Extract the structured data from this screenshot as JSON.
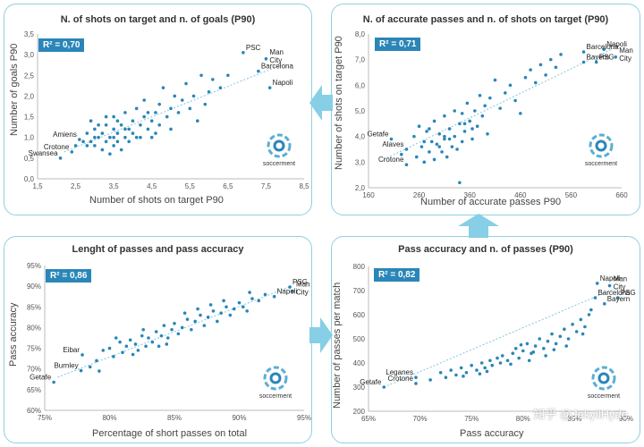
{
  "watermark": "知乎 @JekyllHyde",
  "logo_label": "soccerment",
  "colors": {
    "point": "#2a86b8",
    "trend": "#7fc6de",
    "border": "#8fcfe3",
    "r2_bg": "#2a86b8",
    "arrow": "#86cfe6"
  },
  "chart_data": [
    {
      "type": "scatter",
      "title": "N. of shots on target and n. of goals (P90)",
      "xlabel": "Number of shots on target P90",
      "ylabel": "Number of goals P90",
      "r2": "R² = 0,70",
      "xlim": [
        1.5,
        8.5
      ],
      "ylim": [
        0,
        3.5
      ],
      "xticks": [
        1.5,
        2.5,
        3.5,
        4.5,
        5.5,
        6.5,
        7.5,
        8.5
      ],
      "xtick_labels": [
        "1,5",
        "2,5",
        "3,5",
        "4,5",
        "5,5",
        "6,5",
        "7,5",
        "8,5"
      ],
      "yticks": [
        0,
        0.5,
        1,
        1.5,
        2,
        2.5,
        3,
        3.5
      ],
      "ytick_labels": [
        "0,0",
        "0,5",
        "1,0",
        "1,5",
        "2,0",
        "2,5",
        "3,0",
        "3,5"
      ],
      "trend": [
        [
          2.2,
          0.65
        ],
        [
          7.9,
          2.75
        ]
      ],
      "annotations": [
        {
          "label": "PSC",
          "x": 6.9,
          "y": 3.05
        },
        {
          "label": "Man City",
          "x": 7.5,
          "y": 2.9
        },
        {
          "label": "Barcelona",
          "x": 7.3,
          "y": 2.6
        },
        {
          "label": "Napoli",
          "x": 7.6,
          "y": 2.2
        },
        {
          "label": "Amiens",
          "x": 2.6,
          "y": 0.95
        },
        {
          "label": "Crotone",
          "x": 2.4,
          "y": 0.65
        },
        {
          "label": "Swansea",
          "x": 2.1,
          "y": 0.5
        }
      ],
      "points": [
        [
          2.1,
          0.5
        ],
        [
          2.4,
          0.65
        ],
        [
          2.6,
          0.95
        ],
        [
          2.5,
          0.8
        ],
        [
          2.7,
          0.9
        ],
        [
          2.8,
          1.1
        ],
        [
          2.9,
          1.4
        ],
        [
          3.0,
          0.8
        ],
        [
          3.0,
          1.2
        ],
        [
          3.1,
          1.0
        ],
        [
          3.2,
          0.7
        ],
        [
          3.2,
          1.1
        ],
        [
          3.3,
          0.9
        ],
        [
          3.3,
          1.3
        ],
        [
          3.4,
          1.0
        ],
        [
          3.5,
          0.8
        ],
        [
          3.5,
          1.2
        ],
        [
          3.5,
          1.5
        ],
        [
          3.6,
          0.9
        ],
        [
          3.6,
          1.1
        ],
        [
          3.7,
          1.3
        ],
        [
          3.7,
          0.7
        ],
        [
          3.8,
          1.0
        ],
        [
          3.8,
          1.6
        ],
        [
          3.9,
          1.2
        ],
        [
          3.9,
          0.9
        ],
        [
          4.0,
          1.4
        ],
        [
          4.0,
          1.1
        ],
        [
          4.1,
          1.0
        ],
        [
          4.1,
          1.7
        ],
        [
          4.2,
          1.3
        ],
        [
          4.3,
          1.5
        ],
        [
          4.3,
          1.9
        ],
        [
          4.4,
          1.2
        ],
        [
          4.5,
          1.4
        ],
        [
          4.5,
          1.0
        ],
        [
          4.6,
          1.6
        ],
        [
          4.7,
          1.8
        ],
        [
          4.7,
          1.3
        ],
        [
          4.8,
          2.2
        ],
        [
          4.9,
          1.5
        ],
        [
          5.0,
          1.7
        ],
        [
          5.0,
          1.2
        ],
        [
          5.1,
          2.0
        ],
        [
          5.2,
          1.6
        ],
        [
          5.3,
          1.9
        ],
        [
          5.4,
          2.3
        ],
        [
          5.5,
          1.7
        ],
        [
          5.6,
          2.0
        ],
        [
          5.7,
          1.4
        ],
        [
          5.8,
          2.5
        ],
        [
          5.9,
          1.8
        ],
        [
          6.0,
          2.1
        ],
        [
          6.1,
          2.4
        ],
        [
          6.3,
          2.2
        ],
        [
          6.5,
          2.5
        ],
        [
          6.9,
          3.05
        ],
        [
          7.5,
          2.9
        ],
        [
          7.3,
          2.6
        ],
        [
          7.6,
          2.2
        ],
        [
          3.0,
          1.0
        ],
        [
          3.4,
          0.6
        ],
        [
          2.9,
          0.9
        ],
        [
          3.6,
          1.4
        ],
        [
          4.2,
          1.0
        ],
        [
          3.1,
          1.3
        ],
        [
          3.8,
          1.2
        ],
        [
          4.4,
          1.6
        ],
        [
          4.6,
          1.1
        ],
        [
          3.3,
          1.5
        ],
        [
          2.8,
          0.8
        ],
        [
          3.5,
          1.0
        ]
      ]
    },
    {
      "type": "scatter",
      "title": "N. of accurate passes and n. of shots on target (P90)",
      "xlabel": "Number of accurate passes P90",
      "ylabel": "Number of shots on target P90",
      "r2": "R² = 0,71",
      "xlim": [
        160,
        660
      ],
      "ylim": [
        2,
        8
      ],
      "xticks": [
        160,
        260,
        360,
        460,
        560,
        660
      ],
      "xtick_labels": [
        "160",
        "260",
        "360",
        "460",
        "560",
        "660"
      ],
      "yticks": [
        2,
        3,
        4,
        5,
        6,
        7,
        8
      ],
      "ytick_labels": [
        "2,0",
        "3,0",
        "4,0",
        "5,0",
        "6,0",
        "7,0",
        "8,0"
      ],
      "trend": [
        [
          190,
          3.1
        ],
        [
          650,
          7.5
        ]
      ],
      "annotations": [
        {
          "label": "Barcelona",
          "x": 585,
          "y": 7.3
        },
        {
          "label": "Napoli",
          "x": 625,
          "y": 7.4
        },
        {
          "label": "Bayern",
          "x": 585,
          "y": 6.9
        },
        {
          "label": "PSG",
          "x": 610,
          "y": 6.9
        },
        {
          "label": "Man City",
          "x": 648,
          "y": 7.1
        },
        {
          "label": "Getafe",
          "x": 205,
          "y": 3.9
        },
        {
          "label": "Alaves",
          "x": 235,
          "y": 3.5
        },
        {
          "label": "Crotone",
          "x": 235,
          "y": 2.9
        }
      ],
      "points": [
        [
          205,
          3.9
        ],
        [
          235,
          3.5
        ],
        [
          235,
          2.9
        ],
        [
          225,
          3.3
        ],
        [
          250,
          4.0
        ],
        [
          255,
          3.2
        ],
        [
          260,
          4.4
        ],
        [
          265,
          3.6
        ],
        [
          270,
          3.0
        ],
        [
          275,
          4.2
        ],
        [
          280,
          3.4
        ],
        [
          285,
          3.8
        ],
        [
          290,
          4.6
        ],
        [
          290,
          3.1
        ],
        [
          295,
          3.7
        ],
        [
          300,
          4.1
        ],
        [
          305,
          3.4
        ],
        [
          310,
          4.8
        ],
        [
          310,
          3.9
        ],
        [
          315,
          3.2
        ],
        [
          320,
          4.3
        ],
        [
          325,
          3.6
        ],
        [
          330,
          5.0
        ],
        [
          330,
          4.0
        ],
        [
          335,
          3.5
        ],
        [
          340,
          2.2
        ],
        [
          340,
          4.5
        ],
        [
          345,
          3.8
        ],
        [
          350,
          4.2
        ],
        [
          355,
          5.3
        ],
        [
          360,
          4.6
        ],
        [
          365,
          3.9
        ],
        [
          370,
          5.0
        ],
        [
          375,
          4.4
        ],
        [
          380,
          5.6
        ],
        [
          385,
          4.8
        ],
        [
          390,
          5.2
        ],
        [
          395,
          4.1
        ],
        [
          400,
          5.5
        ],
        [
          410,
          6.2
        ],
        [
          420,
          5.1
        ],
        [
          430,
          5.7
        ],
        [
          440,
          6.0
        ],
        [
          450,
          5.4
        ],
        [
          460,
          4.9
        ],
        [
          470,
          6.3
        ],
        [
          480,
          6.6
        ],
        [
          490,
          6.1
        ],
        [
          500,
          6.8
        ],
        [
          510,
          6.4
        ],
        [
          520,
          7.0
        ],
        [
          530,
          6.7
        ],
        [
          540,
          7.2
        ],
        [
          585,
          7.3
        ],
        [
          625,
          7.4
        ],
        [
          585,
          6.9
        ],
        [
          610,
          6.9
        ],
        [
          648,
          7.1
        ],
        [
          270,
          3.8
        ],
        [
          300,
          3.6
        ],
        [
          320,
          3.9
        ],
        [
          350,
          4.5
        ],
        [
          280,
          4.3
        ],
        [
          310,
          4.0
        ],
        [
          345,
          4.9
        ],
        [
          365,
          4.3
        ]
      ]
    },
    {
      "type": "scatter",
      "title": "Lenght of passes and pass accuracy",
      "xlabel": "Percentage of short passes on total",
      "ylabel": "Pass accuracy",
      "r2": "R² = 0,86",
      "xlim": [
        75,
        95
      ],
      "ylim": [
        60,
        95
      ],
      "xticks": [
        75,
        80,
        85,
        90,
        95
      ],
      "xtick_labels": [
        "75%",
        "80%",
        "85%",
        "90%",
        "95%"
      ],
      "yticks": [
        60,
        65,
        70,
        75,
        80,
        85,
        90,
        95
      ],
      "ytick_labels": [
        "60%",
        "65%",
        "70%",
        "75%",
        "80%",
        "85%",
        "90%",
        "95%"
      ],
      "trend": [
        [
          76,
          68
        ],
        [
          94,
          90
        ]
      ],
      "annotations": [
        {
          "label": "PSG",
          "x": 93.9,
          "y": 89.8
        },
        {
          "label": "Man City",
          "x": 94.1,
          "y": 88.8
        },
        {
          "label": "Napoli",
          "x": 92.7,
          "y": 87.5
        },
        {
          "label": "Eibar",
          "x": 77.9,
          "y": 73.4
        },
        {
          "label": "Burnley",
          "x": 77.8,
          "y": 69.6
        },
        {
          "label": "Getafe",
          "x": 75.7,
          "y": 66.8
        }
      ],
      "points": [
        [
          75.7,
          66.8
        ],
        [
          77.8,
          69.6
        ],
        [
          77.9,
          73.4
        ],
        [
          78.5,
          70.5
        ],
        [
          79.0,
          72.0
        ],
        [
          79.5,
          74.5
        ],
        [
          80.0,
          75.0
        ],
        [
          80.3,
          73.0
        ],
        [
          80.8,
          76.5
        ],
        [
          81.0,
          74.0
        ],
        [
          81.3,
          75.5
        ],
        [
          81.6,
          77.0
        ],
        [
          82.0,
          76.0
        ],
        [
          82.2,
          74.5
        ],
        [
          82.5,
          78.0
        ],
        [
          82.8,
          75.5
        ],
        [
          83.0,
          77.5
        ],
        [
          83.3,
          76.5
        ],
        [
          83.6,
          79.0
        ],
        [
          84.0,
          78.0
        ],
        [
          84.2,
          80.5
        ],
        [
          84.5,
          77.5
        ],
        [
          84.8,
          79.5
        ],
        [
          85.0,
          81.0
        ],
        [
          85.3,
          78.5
        ],
        [
          85.6,
          80.0
        ],
        [
          86.0,
          82.0
        ],
        [
          86.3,
          79.5
        ],
        [
          86.6,
          81.5
        ],
        [
          87.0,
          83.0
        ],
        [
          87.3,
          80.5
        ],
        [
          87.6,
          82.5
        ],
        [
          88.0,
          84.0
        ],
        [
          88.3,
          81.5
        ],
        [
          88.6,
          83.5
        ],
        [
          89.0,
          85.0
        ],
        [
          89.3,
          83.0
        ],
        [
          89.6,
          84.5
        ],
        [
          90.0,
          86.0
        ],
        [
          90.3,
          85.0
        ],
        [
          90.6,
          84.0
        ],
        [
          91.0,
          87.0
        ],
        [
          91.5,
          86.5
        ],
        [
          92.0,
          88.0
        ],
        [
          92.7,
          87.5
        ],
        [
          93.9,
          89.8
        ],
        [
          94.1,
          88.8
        ],
        [
          80.5,
          77.5
        ],
        [
          81.8,
          73.5
        ],
        [
          83.8,
          75.5
        ],
        [
          85.8,
          83.5
        ],
        [
          87.8,
          85.5
        ],
        [
          79.2,
          69.5
        ],
        [
          82.6,
          79.5
        ],
        [
          86.8,
          84.5
        ],
        [
          84.4,
          76.0
        ],
        [
          88.8,
          86.5
        ],
        [
          90.8,
          88.5
        ]
      ]
    },
    {
      "type": "scatter",
      "title": "Pass accuracy and n. of passes (P90)",
      "xlabel": "Pass accuracy",
      "ylabel": "Number of passes per match",
      "r2": "R² = 0,82",
      "xlim": [
        65,
        90
      ],
      "ylim": [
        200,
        800
      ],
      "xticks": [
        65,
        70,
        75,
        80,
        85,
        90
      ],
      "xtick_labels": [
        "65%",
        "70%",
        "75%",
        "80%",
        "85%",
        "90%"
      ],
      "yticks": [
        200,
        300,
        400,
        500,
        600,
        700,
        800
      ],
      "ytick_labels": [
        "200",
        "300",
        "400",
        "500",
        "600",
        "700",
        "800"
      ],
      "trend": [
        [
          66.5,
          300
        ],
        [
          89,
          710
        ]
      ],
      "annotations": [
        {
          "label": "Napoli",
          "x": 87.2,
          "y": 730
        },
        {
          "label": "Man City",
          "x": 88.4,
          "y": 720
        },
        {
          "label": "Barcelona",
          "x": 87.0,
          "y": 670
        },
        {
          "label": "PSG",
          "x": 89.2,
          "y": 670
        },
        {
          "label": "Bayern",
          "x": 87.9,
          "y": 645
        },
        {
          "label": "Leganes",
          "x": 69.6,
          "y": 340
        },
        {
          "label": "Crotone",
          "x": 69.6,
          "y": 315
        },
        {
          "label": "Getafe",
          "x": 66.5,
          "y": 300
        }
      ],
      "points": [
        [
          66.5,
          300
        ],
        [
          69.6,
          315
        ],
        [
          69.6,
          340
        ],
        [
          71.0,
          330
        ],
        [
          72.0,
          360
        ],
        [
          72.5,
          340
        ],
        [
          73.0,
          370
        ],
        [
          73.5,
          350
        ],
        [
          74.0,
          380
        ],
        [
          74.5,
          360
        ],
        [
          75.0,
          390
        ],
        [
          75.5,
          370
        ],
        [
          76.0,
          400
        ],
        [
          76.3,
          380
        ],
        [
          76.8,
          410
        ],
        [
          77.0,
          390
        ],
        [
          77.5,
          420
        ],
        [
          77.8,
          400
        ],
        [
          78.0,
          430
        ],
        [
          78.5,
          410
        ],
        [
          79.0,
          440
        ],
        [
          79.3,
          460
        ],
        [
          79.6,
          420
        ],
        [
          80.0,
          450
        ],
        [
          80.4,
          480
        ],
        [
          80.8,
          440
        ],
        [
          81.2,
          470
        ],
        [
          81.6,
          500
        ],
        [
          82.0,
          460
        ],
        [
          82.4,
          490
        ],
        [
          82.8,
          520
        ],
        [
          83.2,
          480
        ],
        [
          83.6,
          510
        ],
        [
          84.0,
          540
        ],
        [
          84.4,
          500
        ],
        [
          84.8,
          560
        ],
        [
          85.2,
          530
        ],
        [
          85.6,
          580
        ],
        [
          86.0,
          550
        ],
        [
          86.4,
          600
        ],
        [
          87.2,
          730
        ],
        [
          88.4,
          720
        ],
        [
          87.0,
          670
        ],
        [
          89.2,
          670
        ],
        [
          87.9,
          645
        ],
        [
          74.2,
          345
        ],
        [
          76.5,
          365
        ],
        [
          78.8,
          395
        ],
        [
          80.6,
          410
        ],
        [
          82.2,
          430
        ],
        [
          84.2,
          470
        ],
        [
          85.8,
          520
        ],
        [
          86.6,
          620
        ],
        [
          83.0,
          455
        ],
        [
          79.8,
          475
        ],
        [
          75.8,
          355
        ],
        [
          81.0,
          445
        ]
      ]
    }
  ]
}
